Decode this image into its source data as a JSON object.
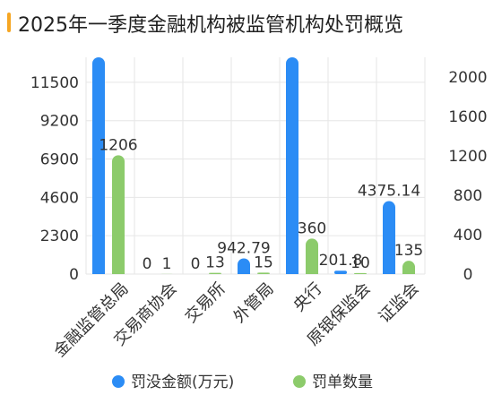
{
  "title": "2025年一季度金融机构被监管机构处罚概览",
  "colors": {
    "accent": "#F6A623",
    "amount": "#2B8CF5",
    "count": "#8CCB6B",
    "grid": "#E6E6E6",
    "axis_text": "#333333",
    "title": "#222222"
  },
  "chart_data": {
    "type": "bar",
    "categories": [
      "金融监管总局",
      "交易商协会",
      "交易所",
      "外管局",
      "央行",
      "原银保监会",
      "证监会"
    ],
    "series": [
      {
        "name": "罚没金额(万元)",
        "axis": "left",
        "values": [
          13000,
          0,
          0,
          942.79,
          13000,
          201.8,
          4375.14
        ],
        "labels": [
          null,
          "0",
          "0",
          "942.79",
          null,
          "201.8",
          "4375.14"
        ]
      },
      {
        "name": "罚单数量",
        "axis": "right",
        "values": [
          1206,
          1,
          13,
          15,
          360,
          10,
          135
        ],
        "labels": [
          "1206",
          "1",
          "13",
          "15",
          "360",
          "10",
          "135"
        ]
      }
    ],
    "y_left": {
      "ticks": [
        "0",
        "2300",
        "4600",
        "6900",
        "9200",
        "11500"
      ],
      "range": [
        0,
        13000
      ]
    },
    "y_right": {
      "ticks": [
        "0",
        "400",
        "800",
        "1200",
        "1600",
        "2000"
      ],
      "range": [
        0,
        2200
      ]
    },
    "grid": true,
    "legend": "bottom-center"
  }
}
